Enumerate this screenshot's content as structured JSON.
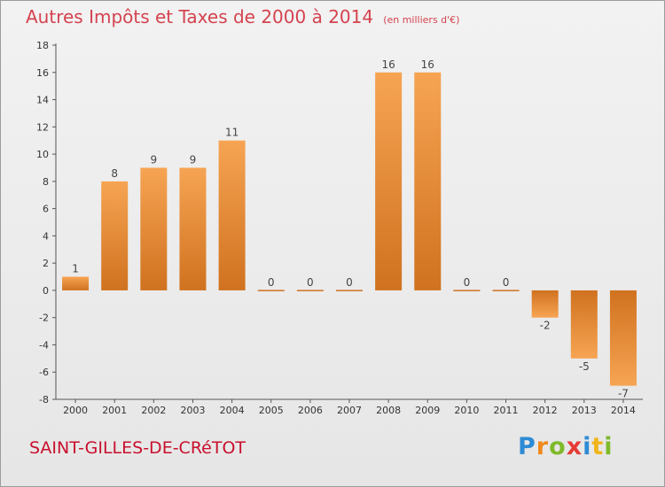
{
  "header": {
    "title": "Autres Impôts et Taxes de 2000 à 2014",
    "unit_note": "(en milliers d'€)"
  },
  "footer": {
    "commune": "SAINT-GILLES-DE-CRéTOT",
    "logo_letters": [
      "P",
      "r",
      "o",
      "x",
      "i",
      "t",
      "i"
    ]
  },
  "chart_data": {
    "type": "bar",
    "title": "Autres Impôts et Taxes de 2000 à 2014",
    "subtitle": "(en milliers d'€)",
    "xlabel": "",
    "ylabel": "",
    "categories": [
      "2000",
      "2001",
      "2002",
      "2003",
      "2004",
      "2005",
      "2006",
      "2007",
      "2008",
      "2009",
      "2010",
      "2011",
      "2012",
      "2013",
      "2014"
    ],
    "values": [
      1,
      8,
      9,
      9,
      11,
      0,
      0,
      0,
      16,
      16,
      0,
      0,
      -2,
      -5,
      -7
    ],
    "value_labels": [
      "1",
      "8",
      "9",
      "9",
      "11",
      "0",
      "0",
      "0",
      "16",
      "16",
      "0",
      "0",
      "-2",
      "-5",
      "-7"
    ],
    "ylim": [
      -8,
      18
    ],
    "yticks": [
      -8,
      -6,
      -4,
      -2,
      0,
      2,
      4,
      6,
      8,
      10,
      12,
      14,
      16,
      18
    ],
    "grid": false,
    "legend": "none",
    "colors": {
      "bar_light": "#f6a453",
      "bar_dark": "#d0721f",
      "title": "#d4434f"
    }
  }
}
